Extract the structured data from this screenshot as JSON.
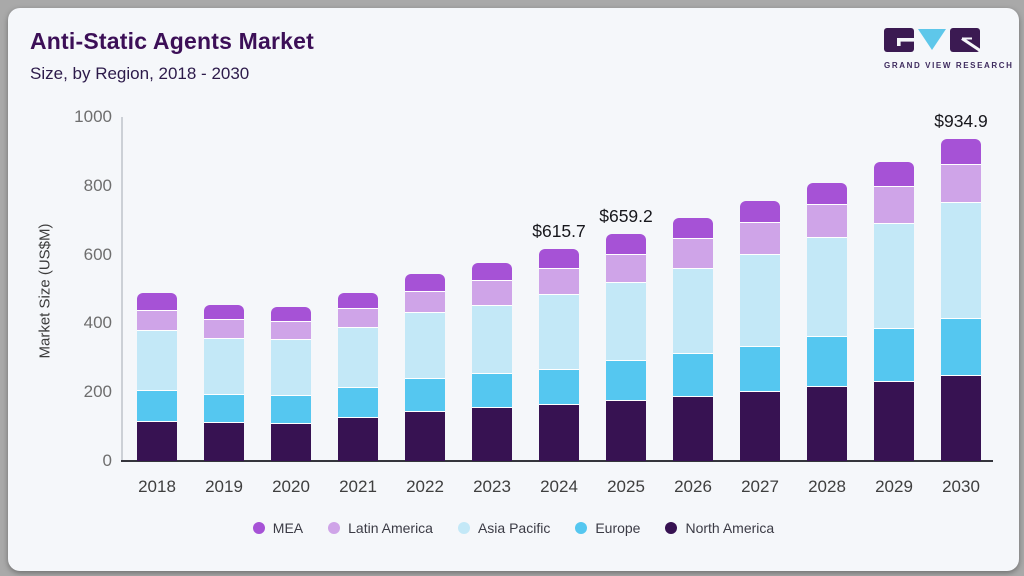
{
  "page": {
    "outer_bg": "#a9a9a9",
    "card_bg": "#f5f7fa"
  },
  "header": {
    "title": "Anti-Static Agents Market",
    "subtitle": "Size, by Region, 2018 - 2030"
  },
  "logo": {
    "brand": "GRAND VIEW RESEARCH",
    "block_color": "#3b1a52",
    "accent_color": "#5ec7ea"
  },
  "chart_data": {
    "type": "bar",
    "stacked": true,
    "title": "Anti-Static Agents Market",
    "subtitle": "Size, by Region, 2018 - 2030",
    "xlabel": "",
    "ylabel": "Market Size (US$M)",
    "ylim": [
      0,
      1000
    ],
    "yticks": [
      0,
      200,
      400,
      600,
      800,
      1000
    ],
    "grid": false,
    "legend_position": "bottom",
    "categories": [
      "2018",
      "2019",
      "2020",
      "2021",
      "2022",
      "2023",
      "2024",
      "2025",
      "2026",
      "2027",
      "2028",
      "2029",
      "2030"
    ],
    "series": [
      {
        "name": "North America",
        "color": "#371252",
        "values": [
          116,
          112,
          111,
          128,
          146,
          158,
          165,
          176,
          189,
          204,
          217,
          232,
          250
        ]
      },
      {
        "name": "Europe",
        "color": "#55c7f0",
        "values": [
          90,
          82,
          81,
          88,
          95,
          97,
          103,
          117,
          124,
          129,
          145,
          156,
          166
        ]
      },
      {
        "name": "Asia Pacific",
        "color": "#c3e8f7",
        "values": [
          176,
          165,
          164,
          174,
          192,
          199,
          218,
          228,
          249,
          270,
          289,
          305,
          336
        ]
      },
      {
        "name": "Latin America",
        "color": "#cfa4e8",
        "values": [
          58,
          53,
          50,
          55,
          62,
          71,
          75,
          82,
          87,
          92,
          96,
          106,
          111
        ]
      },
      {
        "name": "MEA",
        "color": "#a652d6",
        "values": [
          48,
          43,
          42,
          44,
          49,
          51,
          54.7,
          56.2,
          58,
          60,
          62,
          71,
          71.9
        ]
      }
    ],
    "legend": [
      "MEA",
      "Latin America",
      "Asia Pacific",
      "Europe",
      "North America"
    ],
    "total_labels": {
      "2024": "$615.7",
      "2025": "$659.2",
      "2030": "$934.9"
    }
  }
}
